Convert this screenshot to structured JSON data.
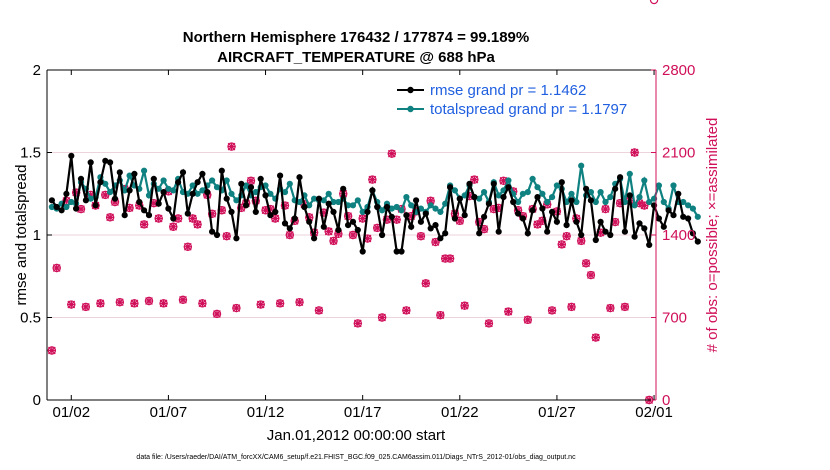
{
  "chart_data": {
    "type": "line",
    "title": "Northern Hemisphere 176432 / 177874 = 99.189%",
    "subtitle": "AIRCRAFT_TEMPERATURE @ 688 hPa",
    "xlabel": "Jan.01,2012 00:00:00 start",
    "ylabel_left": "rmse and totalspread",
    "ylabel_right": "# of obs: o=possible; ×=assimilated",
    "footnote": "data file: /Users/raeder/DAI/ATM_forcXX/CAM6_setup/f.e21.FHIST_BGC.f09_025.CAM6assim.011/Diags_NTrS_2012-01/obs_diag_output.nc",
    "xlim": [
      0.75,
      32.1
    ],
    "ylim_left": [
      0,
      2
    ],
    "ylim_right": [
      0,
      2800
    ],
    "xticks": [
      2,
      7,
      12,
      17,
      22,
      27,
      32
    ],
    "xtick_labels": [
      "01/02",
      "01/07",
      "01/12",
      "01/17",
      "01/22",
      "01/27",
      "02/01"
    ],
    "yticks_left": [
      0,
      0.5,
      1,
      1.5,
      2
    ],
    "ytick_labels_left": [
      "0",
      "0.5",
      "1",
      "1.5",
      "2"
    ],
    "yticks_right": [
      0,
      700,
      1400,
      2100,
      2800
    ],
    "ytick_labels_right": [
      "0",
      "700",
      "1400",
      "2100",
      "2800"
    ],
    "x_start": 1.0,
    "x_step": 0.25,
    "series": [
      {
        "name": "rmse",
        "legend": "rmse grand pr = 1.1462",
        "color": "#000000",
        "values": [
          1.21,
          1.17,
          1.15,
          1.25,
          1.48,
          1.16,
          1.34,
          1.21,
          1.44,
          1.18,
          1.32,
          1.45,
          1.44,
          1.22,
          1.38,
          1.12,
          1.27,
          1.37,
          1.2,
          1.15,
          1.12,
          1.34,
          1.19,
          1.26,
          1.16,
          1.1,
          1.32,
          1.38,
          1.13,
          1.25,
          1.32,
          1.37,
          1.26,
          1.02,
          1.0,
          1.39,
          1.22,
          1.14,
          0.98,
          1.31,
          1.18,
          1.29,
          1.14,
          1.34,
          1.24,
          1.12,
          1.14,
          1.36,
          1.07,
          1.04,
          1.1,
          1.35,
          1.17,
          1.08,
          0.98,
          1.22,
          1.05,
          1.19,
          1.14,
          1.03,
          1.28,
          1.06,
          1.08,
          1.03,
          0.9,
          1.14,
          1.27,
          1.17,
          1.0,
          1.17,
          1.11,
          0.9,
          0.9,
          1.12,
          1.05,
          1.21,
          1.08,
          1.13,
          1.04,
          1.06,
          0.98,
          1.01,
          1.29,
          1.1,
          1.22,
          1.12,
          1.31,
          1.23,
          1.01,
          1.11,
          1.19,
          1.31,
          1.02,
          1.23,
          1.29,
          1.2,
          1.13,
          1.1,
          1.01,
          1.15,
          1.23,
          1.16,
          1.02,
          1.14,
          1.08,
          1.32,
          1.06,
          1.21,
          1.08,
          1.0,
          1.28,
          1.21,
          0.97,
          1.08,
          1.02,
          1.0,
          1.28,
          1.35,
          1.02,
          1.24,
          0.99,
          1.07,
          1.04,
          0.94,
          1.18,
          1.1,
          1.05,
          1.15,
          1.12,
          1.25,
          1.11,
          1.1,
          1.01,
          0.96
        ]
      },
      {
        "name": "totalspread",
        "legend": "totalspread grand pr = 1.1797",
        "color": "#0f8181",
        "values": [
          1.17,
          1.16,
          1.19,
          1.17,
          1.2,
          1.19,
          1.32,
          1.28,
          1.22,
          1.23,
          1.35,
          1.31,
          1.26,
          1.3,
          1.33,
          1.27,
          1.36,
          1.3,
          1.28,
          1.39,
          1.24,
          1.31,
          1.28,
          1.33,
          1.28,
          1.27,
          1.34,
          1.26,
          1.25,
          1.3,
          1.25,
          1.27,
          1.3,
          1.33,
          1.29,
          1.27,
          1.33,
          1.25,
          1.21,
          1.24,
          1.3,
          1.24,
          1.26,
          1.29,
          1.3,
          1.25,
          1.22,
          1.28,
          1.26,
          1.31,
          1.21,
          1.2,
          1.24,
          1.18,
          1.22,
          1.21,
          1.21,
          1.25,
          1.2,
          1.2,
          1.22,
          1.18,
          1.18,
          1.21,
          1.14,
          1.17,
          1.27,
          1.2,
          1.15,
          1.19,
          1.16,
          1.17,
          1.15,
          1.23,
          1.18,
          1.14,
          1.16,
          1.14,
          1.18,
          1.16,
          1.14,
          1.19,
          1.3,
          1.27,
          1.22,
          1.24,
          1.3,
          1.23,
          1.22,
          1.26,
          1.2,
          1.32,
          1.24,
          1.27,
          1.33,
          1.25,
          1.2,
          1.25,
          1.26,
          1.34,
          1.29,
          1.25,
          1.2,
          1.23,
          1.3,
          1.28,
          1.2,
          1.25,
          1.2,
          1.42,
          1.24,
          1.26,
          1.2,
          1.26,
          1.2,
          1.23,
          1.31,
          1.34,
          1.2,
          1.37,
          1.18,
          1.23,
          1.33,
          1.2,
          1.22,
          1.3,
          1.2,
          1.16,
          1.3,
          1.2,
          1.2,
          1.18,
          1.16,
          1.11
        ]
      }
    ],
    "obs": {
      "name": "# of obs",
      "color": "#d0105a",
      "x": [
        1.0,
        1.25,
        1.75,
        2.0,
        2.25,
        2.5,
        2.75,
        3.0,
        3.25,
        3.5,
        3.75,
        4.0,
        4.25,
        4.5,
        4.75,
        5.0,
        5.25,
        5.5,
        5.75,
        6.0,
        6.25,
        6.5,
        6.75,
        7.0,
        7.25,
        7.5,
        7.75,
        8.0,
        8.25,
        8.5,
        8.75,
        9.0,
        9.25,
        9.5,
        9.75,
        10.0,
        10.25,
        10.5,
        10.75,
        11.0,
        11.25,
        11.5,
        11.75,
        12.0,
        12.25,
        12.5,
        12.75,
        13.0,
        13.25,
        13.5,
        13.75,
        14.0,
        14.25,
        14.5,
        14.75,
        15.0,
        15.25,
        15.5,
        15.75,
        16.0,
        16.25,
        16.5,
        16.75,
        17.0,
        17.25,
        17.5,
        17.75,
        18.0,
        18.25,
        18.5,
        18.75,
        19.0,
        19.25,
        19.5,
        19.75,
        20.0,
        20.25,
        20.5,
        20.75,
        21.0,
        21.25,
        21.5,
        21.75,
        22.0,
        22.25,
        22.5,
        22.75,
        23.0,
        23.25,
        23.5,
        23.75,
        24.0,
        24.25,
        24.5,
        24.75,
        25.0,
        25.25,
        25.5,
        25.75,
        26.0,
        26.25,
        26.5,
        26.75,
        27.0,
        27.25,
        27.5,
        27.75,
        28.0,
        28.25,
        28.5,
        28.75,
        29.0,
        29.25,
        29.5,
        29.75,
        30.0,
        30.25,
        30.5,
        30.75,
        31.0,
        31.25,
        31.5,
        31.75,
        32.0
      ],
      "possible": [
        420,
        1120,
        1690,
        810,
        1760,
        1620,
        790,
        1740,
        1650,
        820,
        1740,
        1550,
        1680,
        830,
        1790,
        1630,
        820,
        1650,
        1490,
        840,
        1670,
        1540,
        820,
        1770,
        1470,
        1540,
        850,
        1300,
        1540,
        1490,
        820,
        1740,
        1580,
        730,
        1610,
        1390,
        2150,
        780,
        1630,
        1670,
        1860,
        1690,
        810,
        1610,
        1620,
        1540,
        820,
        1650,
        1400,
        1520,
        830,
        1660,
        1550,
        1420,
        760,
        1590,
        1430,
        1350,
        1410,
        1750,
        1560,
        1400,
        650,
        1540,
        1370,
        1870,
        1460,
        700,
        1530,
        2090,
        1530,
        1620,
        760,
        1560,
        1600,
        1390,
        990,
        1690,
        1340,
        720,
        1200,
        1200,
        1580,
        1520,
        800,
        1730,
        1870,
        1510,
        1450,
        650,
        1620,
        1630,
        1860,
        750,
        1770,
        1610,
        1560,
        680,
        1620,
        1490,
        1520,
        1660,
        760,
        1600,
        1320,
        1390,
        790,
        1540,
        1350,
        1160,
        1060,
        530,
        1420,
        1620,
        780,
        1510,
        1670,
        790,
        1690,
        2100,
        1670,
        1650,
        0
      ]
    }
  }
}
